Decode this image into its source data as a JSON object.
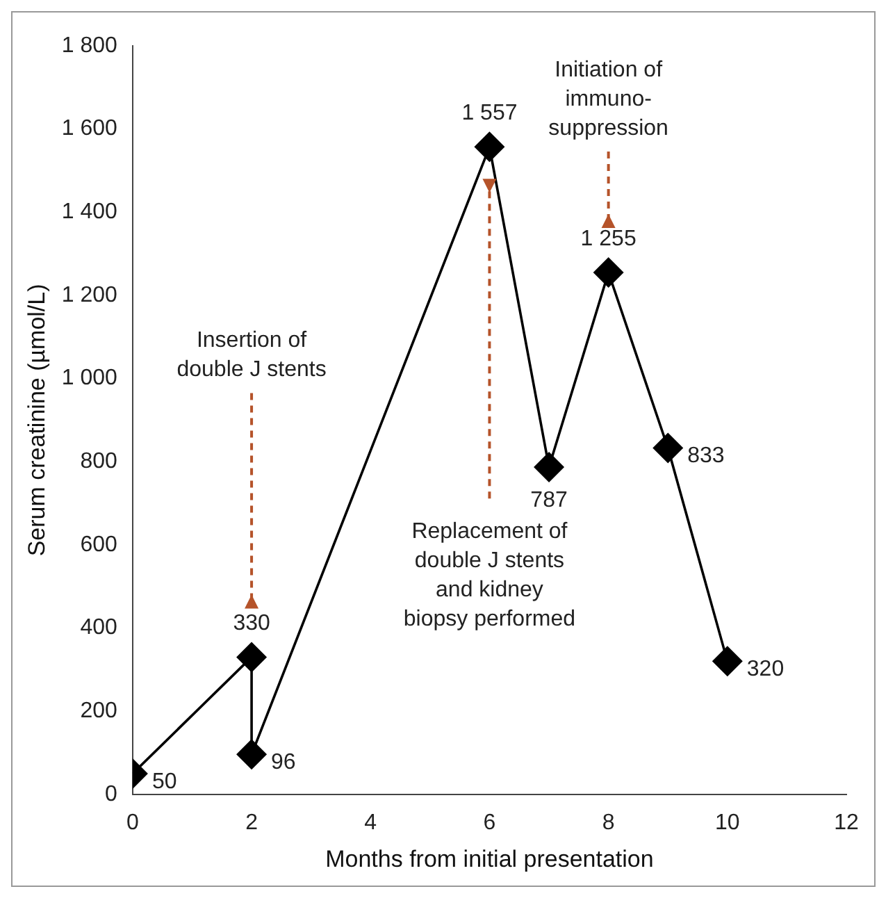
{
  "chart_data": {
    "type": "line",
    "xlabel": "Months from initial presentation",
    "ylabel": "Serum creatinine (µmol/L)",
    "x": [
      0,
      2,
      2,
      6,
      7,
      8,
      9,
      10
    ],
    "series": [
      {
        "color": "#000000",
        "values": [
          50,
          330,
          96,
          1557,
          787,
          1255,
          833,
          320
        ],
        "value_labels": [
          "50",
          "330",
          "96",
          "1 557",
          "787",
          "1 255",
          "833",
          "320"
        ]
      }
    ],
    "xlim": [
      0,
      12
    ],
    "xticks": [
      0,
      2,
      4,
      6,
      8,
      10,
      12
    ],
    "ylim": [
      0,
      1800
    ],
    "yticks": [
      0,
      200,
      400,
      600,
      800,
      {
        "value": 1000,
        "label": "1 000"
      },
      {
        "value": 1200,
        "label": "1 200"
      },
      {
        "value": 1400,
        "label": "1 400"
      },
      {
        "value": 1600,
        "label": "1 600"
      },
      {
        "value": 1800,
        "label": "1 800"
      }
    ],
    "marker": "diamond",
    "line_style": "solid",
    "grid": false,
    "legend": false,
    "annotations": [
      "Insertion of double J stents",
      "Replacement of double J stents and kidney biopsy performed",
      "Initiation of immuno-suppression"
    ]
  }
}
